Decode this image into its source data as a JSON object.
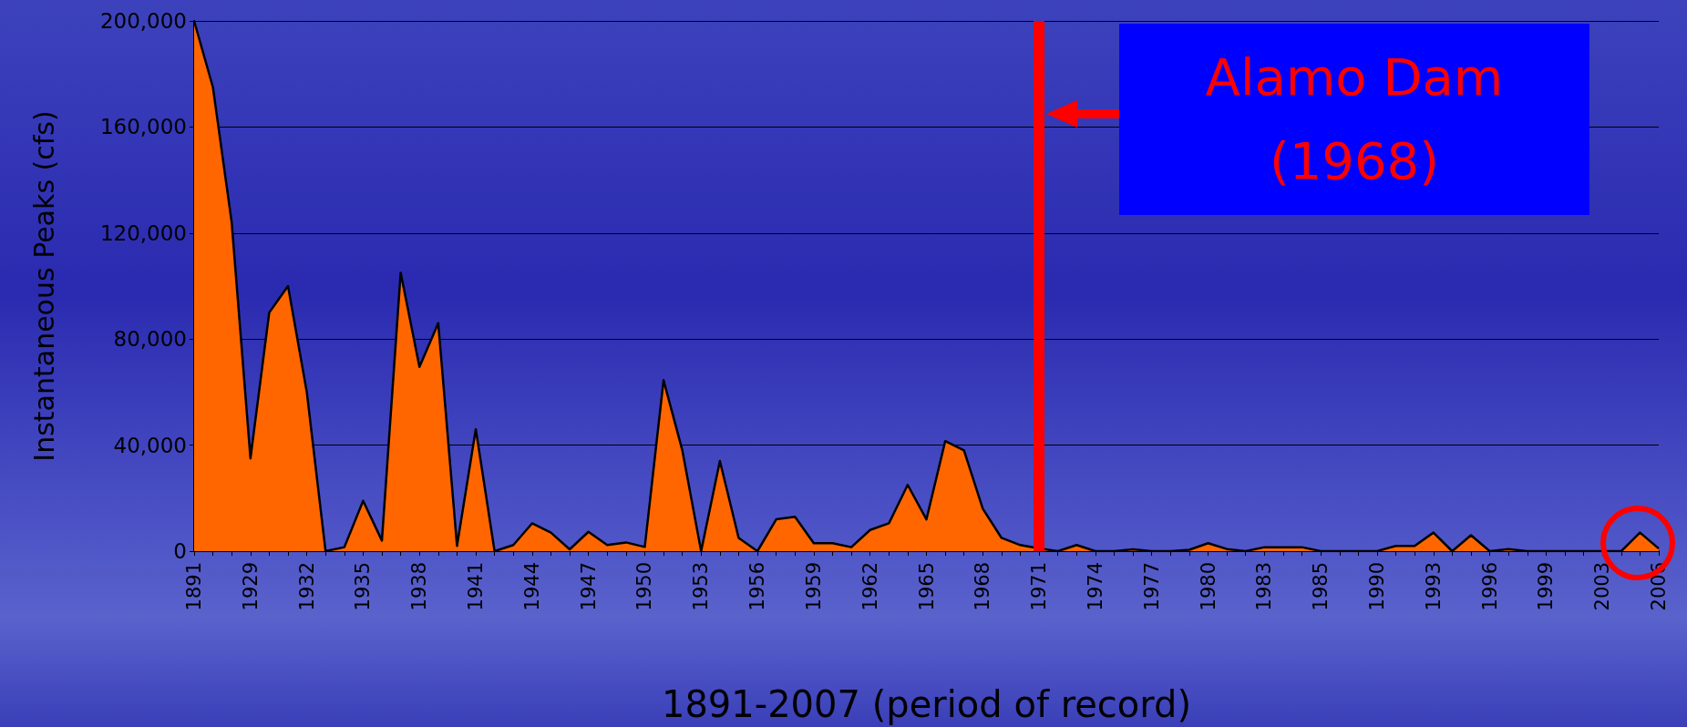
{
  "chart_data": {
    "type": "area",
    "xlabel": "1891-2007 (period of record)",
    "ylabel": "Instantaneous Peaks (cfs)",
    "categories": [
      "1891",
      null,
      null,
      "1929",
      null,
      null,
      "1932",
      null,
      null,
      "1935",
      null,
      null,
      "1938",
      null,
      null,
      "1941",
      null,
      null,
      "1944",
      null,
      null,
      "1947",
      null,
      null,
      "1950",
      null,
      null,
      "1953",
      null,
      null,
      "1956",
      null,
      null,
      "1959",
      null,
      null,
      "1962",
      null,
      null,
      "1965",
      null,
      null,
      "1968",
      null,
      null,
      "1971",
      null,
      null,
      "1974",
      null,
      null,
      "1977",
      null,
      null,
      "1980",
      null,
      null,
      "1983",
      null,
      null,
      "1985",
      null,
      null,
      "1990",
      null,
      null,
      "1993",
      null,
      null,
      "1996",
      null,
      null,
      "1999",
      null,
      null,
      "2003",
      null,
      null,
      "2006"
    ],
    "series": [
      {
        "color": "#ff6600",
        "values": [
          200000,
          175000,
          124000,
          35000,
          90000,
          100000,
          60000,
          0,
          1500,
          19000,
          4000,
          105000,
          69500,
          86000,
          2000,
          46000,
          0,
          2300,
          10500,
          7000,
          700,
          7300,
          2300,
          3300,
          1600,
          64500,
          38000,
          0,
          34000,
          5000,
          0,
          12000,
          13000,
          3000,
          3000,
          1500,
          8000,
          10500,
          25000,
          12000,
          41500,
          38000,
          16000,
          5000,
          2300,
          1000,
          0,
          2300,
          0,
          0,
          700,
          0,
          0,
          500,
          3000,
          800,
          0,
          1500,
          1500,
          1500,
          0,
          0,
          0,
          0,
          2000,
          2000,
          7000,
          0,
          6000,
          0,
          800,
          0,
          0,
          0,
          0,
          0,
          0,
          7000,
          1000
        ]
      }
    ],
    "ylim": [
      0,
      200000
    ],
    "yticks": [
      {
        "value": 0,
        "label": "0"
      },
      {
        "value": 40000,
        "label": "40,000"
      },
      {
        "value": 80000,
        "label": "80,000"
      },
      {
        "value": 120000,
        "label": "120,000"
      },
      {
        "value": 160000,
        "label": "160,000"
      },
      {
        "value": 200000,
        "label": "200,000"
      }
    ],
    "grid": "y",
    "marker": "none",
    "line_style": "solid",
    "ref_lines": [
      {
        "axis": "x",
        "value": "1971",
        "color": "#ff0000"
      }
    ],
    "annotations": [
      "Alamo Dam\n(1968)"
    ]
  }
}
